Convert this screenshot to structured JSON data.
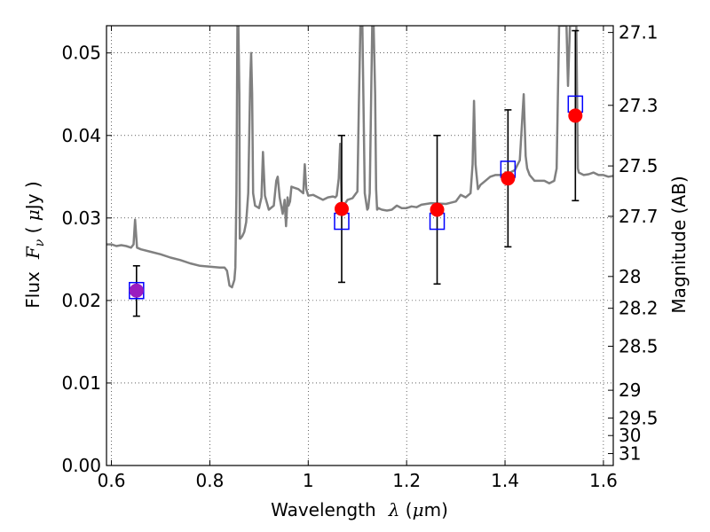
{
  "chart_data": {
    "type": "scatter",
    "title": "",
    "xlabel_text": "Wavelength",
    "xlabel_symbol": "λ",
    "xlabel_unit_open": " (",
    "xlabel_unit_mu": "μ",
    "xlabel_unit_close": "m)",
    "ylabel_text": "Flux",
    "ylabel_symbol": "F",
    "ylabel_subscript": "ν",
    "ylabel_unit_open": " ( ",
    "ylabel_unit_mu": "μ",
    "ylabel_unit_close": "Jy )",
    "y2label": "Magnitude (AB)",
    "xlim": [
      0.59,
      1.62
    ],
    "ylim": [
      0.0,
      0.0533
    ],
    "grid": true,
    "grid_style": "dotted",
    "xticks": [
      0.6,
      0.8,
      1.0,
      1.2,
      1.4,
      1.6
    ],
    "xtick_labels": [
      "0.6",
      "0.8",
      "1",
      "1.2",
      "1.4",
      "1.6"
    ],
    "yticks": [
      0.0,
      0.01,
      0.02,
      0.03,
      0.04,
      0.05
    ],
    "ytick_labels": [
      "0.00",
      "0.01",
      "0.02",
      "0.03",
      "0.04",
      "0.05"
    ],
    "y2ticks": [
      27.1,
      27.3,
      27.5,
      27.7,
      28,
      28.2,
      28.5,
      29,
      29.5,
      30,
      31
    ],
    "y2tick_labels": [
      "27.1",
      "27.3",
      "27.5",
      "27.7",
      "28",
      "28.2",
      "28.5",
      "29",
      "29.5",
      "30",
      "31"
    ],
    "model_spectrum": {
      "color": "#808080",
      "x": [
        0.59,
        0.6,
        0.61,
        0.62,
        0.63,
        0.64,
        0.645,
        0.648,
        0.652,
        0.66,
        0.68,
        0.7,
        0.72,
        0.74,
        0.76,
        0.78,
        0.8,
        0.82,
        0.83,
        0.835,
        0.84,
        0.845,
        0.85,
        0.852,
        0.854,
        0.856,
        0.858,
        0.86,
        0.861,
        0.862,
        0.866,
        0.87,
        0.874,
        0.878,
        0.882,
        0.884,
        0.886,
        0.888,
        0.892,
        0.9,
        0.905,
        0.908,
        0.912,
        0.92,
        0.93,
        0.935,
        0.938,
        0.942,
        0.948,
        0.952,
        0.955,
        0.958,
        0.96,
        0.963,
        0.966,
        0.97,
        0.98,
        0.99,
        0.993,
        0.996,
        1.0,
        1.01,
        1.02,
        1.03,
        1.04,
        1.05,
        1.055,
        1.058,
        1.062,
        1.065,
        1.068,
        1.07,
        1.073,
        1.08,
        1.09,
        1.1,
        1.103,
        1.106,
        1.11,
        1.115,
        1.12,
        1.122,
        1.125,
        1.13,
        1.133,
        1.136,
        1.138,
        1.14,
        1.143,
        1.146,
        1.15,
        1.16,
        1.17,
        1.18,
        1.19,
        1.2,
        1.21,
        1.22,
        1.23,
        1.25,
        1.28,
        1.3,
        1.31,
        1.32,
        1.33,
        1.334,
        1.337,
        1.34,
        1.345,
        1.35,
        1.36,
        1.37,
        1.38,
        1.39,
        1.4,
        1.41,
        1.42,
        1.43,
        1.438,
        1.442,
        1.445,
        1.45,
        1.46,
        1.47,
        1.48,
        1.49,
        1.5,
        1.505,
        1.51,
        1.513,
        1.518,
        1.522,
        1.525,
        1.528,
        1.532,
        1.536,
        1.539,
        1.542,
        1.545,
        1.548,
        1.55,
        1.56,
        1.57,
        1.58,
        1.59,
        1.6,
        1.61,
        1.62
      ],
      "y": [
        0.0268,
        0.0268,
        0.0266,
        0.0267,
        0.0266,
        0.0264,
        0.0268,
        0.0298,
        0.0264,
        0.0262,
        0.0259,
        0.0256,
        0.0252,
        0.0249,
        0.0245,
        0.0242,
        0.0241,
        0.024,
        0.024,
        0.0236,
        0.0218,
        0.0216,
        0.0225,
        0.024,
        0.033,
        0.0533,
        0.0533,
        0.045,
        0.0275,
        0.0275,
        0.0278,
        0.0283,
        0.0295,
        0.033,
        0.0465,
        0.05,
        0.045,
        0.033,
        0.0315,
        0.0312,
        0.0325,
        0.038,
        0.0327,
        0.031,
        0.0315,
        0.0345,
        0.035,
        0.0325,
        0.0305,
        0.0322,
        0.029,
        0.0325,
        0.0315,
        0.032,
        0.0338,
        0.0337,
        0.0335,
        0.033,
        0.0365,
        0.0335,
        0.0327,
        0.0328,
        0.0325,
        0.0322,
        0.0325,
        0.0326,
        0.0325,
        0.0327,
        0.0348,
        0.039,
        0.0315,
        0.0312,
        0.0316,
        0.0322,
        0.0324,
        0.0332,
        0.044,
        0.0533,
        0.0533,
        0.033,
        0.031,
        0.0312,
        0.033,
        0.0533,
        0.0533,
        0.045,
        0.0335,
        0.031,
        0.0312,
        0.0311,
        0.031,
        0.0309,
        0.031,
        0.0315,
        0.0312,
        0.0312,
        0.0314,
        0.0313,
        0.0316,
        0.0318,
        0.0317,
        0.032,
        0.0328,
        0.0325,
        0.033,
        0.0365,
        0.0442,
        0.0365,
        0.0335,
        0.034,
        0.0345,
        0.035,
        0.0352,
        0.0352,
        0.0353,
        0.0355,
        0.0358,
        0.037,
        0.045,
        0.0375,
        0.036,
        0.0352,
        0.0345,
        0.0345,
        0.0345,
        0.0342,
        0.0345,
        0.036,
        0.0533,
        0.0533,
        0.0533,
        0.0533,
        0.0533,
        0.046,
        0.0533,
        0.0533,
        0.0533,
        0.0533,
        0.0533,
        0.036,
        0.0355,
        0.0352,
        0.0353,
        0.0355,
        0.0352,
        0.0352,
        0.035,
        0.0351
      ]
    },
    "series": [
      {
        "name": "",
        "marker": "open-square",
        "color": "#0000ff",
        "x": [
          0.651,
          1.068,
          1.262,
          1.406,
          1.543
        ],
        "y": [
          0.0212,
          0.0296,
          0.0296,
          0.0359,
          0.0438
        ]
      },
      {
        "name": "",
        "marker": "filled-circle",
        "colors": [
          "#9a1cbf",
          "#ff0000",
          "#ff0000",
          "#ff0000",
          "#ff0000"
        ],
        "x": [
          0.651,
          1.068,
          1.262,
          1.406,
          1.543
        ],
        "y": [
          0.0212,
          0.0311,
          0.031,
          0.0348,
          0.0424
        ],
        "yerr_low": [
          0.0181,
          0.0222,
          0.022,
          0.0265,
          0.0321
        ],
        "yerr_high": [
          0.0242,
          0.04,
          0.04,
          0.0431,
          0.0527
        ]
      }
    ]
  }
}
